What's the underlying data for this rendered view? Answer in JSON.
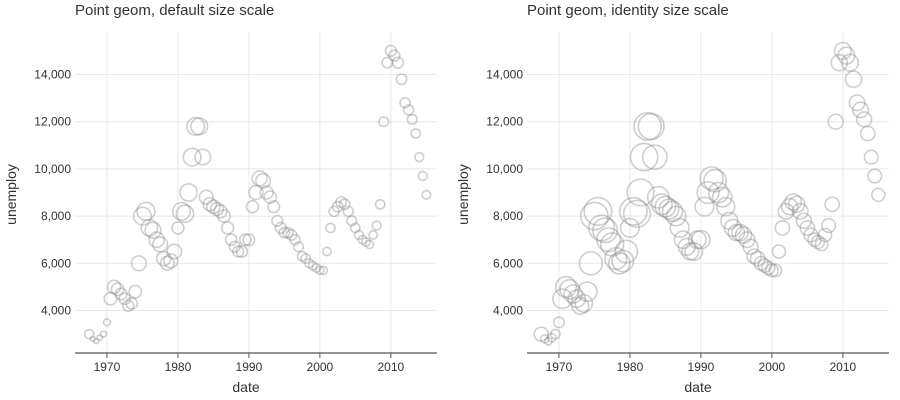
{
  "colors": {
    "point": "#8a8a8a",
    "grid": "#e8e8e8",
    "text": "#333333",
    "axis": "#555555"
  },
  "chart_data": [
    {
      "type": "scatter",
      "title": "Point geom, default size scale",
      "xlabel": "date",
      "ylabel": "unemploy",
      "xticks": [
        "1970",
        "1980",
        "1990",
        "2000",
        "2010"
      ],
      "yticks": [
        "4,000",
        "6,000",
        "8,000",
        "10,000",
        "12,000",
        "14,000"
      ],
      "xlim": [
        1965.5,
        2016.5
      ],
      "ylim": [
        2200,
        15800
      ],
      "grid": true,
      "size_scale": "default"
    },
    {
      "type": "scatter",
      "title": "Point geom, identity size scale",
      "xlabel": "date",
      "ylabel": "unemploy",
      "xticks": [
        "1970",
        "1980",
        "1990",
        "2000",
        "2010"
      ],
      "yticks": [
        "4,000",
        "6,000",
        "8,000",
        "10,000",
        "12,000",
        "14,000"
      ],
      "xlim": [
        1965.5,
        2016.5
      ],
      "ylim": [
        2200,
        15800
      ],
      "grid": true,
      "size_scale": "identity"
    }
  ],
  "series_data": {
    "name": "unemploy",
    "x": [
      1967.5,
      1968.0,
      1968.5,
      1969.0,
      1969.5,
      1970.0,
      1970.5,
      1971.0,
      1971.5,
      1972.0,
      1972.5,
      1973.0,
      1973.5,
      1974.0,
      1974.5,
      1975.0,
      1975.5,
      1976.0,
      1976.5,
      1977.0,
      1977.5,
      1978.0,
      1978.5,
      1979.0,
      1979.5,
      1980.0,
      1980.5,
      1981.0,
      1981.5,
      1982.0,
      1982.5,
      1983.0,
      1983.5,
      1984.0,
      1984.5,
      1985.0,
      1985.5,
      1986.0,
      1986.5,
      1987.0,
      1987.5,
      1988.0,
      1988.5,
      1989.0,
      1989.5,
      1990.0,
      1990.5,
      1991.0,
      1991.5,
      1992.0,
      1992.5,
      1993.0,
      1993.5,
      1994.0,
      1994.5,
      1995.0,
      1995.5,
      1996.0,
      1996.5,
      1997.0,
      1997.5,
      1998.0,
      1998.5,
      1999.0,
      1999.5,
      2000.0,
      2000.5,
      2001.0,
      2001.5,
      2002.0,
      2002.5,
      2003.0,
      2003.5,
      2004.0,
      2004.5,
      2005.0,
      2005.5,
      2006.0,
      2006.5,
      2007.0,
      2007.5,
      2008.0,
      2008.5,
      2009.0,
      2009.5,
      2010.0,
      2010.5,
      2011.0,
      2011.5,
      2012.0,
      2012.5,
      2013.0,
      2013.5,
      2014.0,
      2014.5,
      2015.0
    ],
    "y": [
      3000,
      2800,
      2700,
      2850,
      3000,
      3500,
      4500,
      5000,
      4900,
      4700,
      4500,
      4200,
      4300,
      4800,
      6000,
      8000,
      8200,
      7500,
      7400,
      7000,
      6800,
      6200,
      6000,
      6100,
      6500,
      7500,
      8200,
      8100,
      9000,
      10500,
      11800,
      11800,
      10500,
      8800,
      8500,
      8400,
      8300,
      8200,
      8000,
      7500,
      7000,
      6700,
      6500,
      6500,
      7000,
      7000,
      8400,
      9000,
      9600,
      9500,
      9000,
      8800,
      8400,
      7800,
      7500,
      7300,
      7300,
      7200,
      7000,
      6700,
      6300,
      6200,
      6000,
      5900,
      5800,
      5700,
      5700,
      6500,
      7500,
      8200,
      8400,
      8600,
      8500,
      8200,
      7800,
      7500,
      7200,
      7000,
      6900,
      6800,
      7200,
      7600,
      8500,
      12000,
      14500,
      15000,
      14800,
      14500,
      13800,
      12800,
      12500,
      12100,
      11500,
      10500,
      9700,
      8900
    ],
    "size": [
      4.5,
      2.6,
      2.4,
      2.7,
      3.0,
      3.4,
      6.2,
      6.6,
      6.2,
      5.8,
      5.6,
      5.4,
      5.6,
      6.2,
      7.4,
      8.8,
      8.9,
      8.2,
      7.9,
      7.6,
      7.4,
      7.0,
      6.8,
      6.9,
      7.2,
      6.0,
      8.8,
      8.6,
      8.6,
      8.8,
      8.8,
      8.3,
      7.8,
      6.9,
      6.6,
      6.6,
      6.4,
      6.4,
      6.2,
      6.0,
      5.6,
      5.4,
      5.4,
      5.6,
      5.6,
      5.8,
      6.0,
      7.0,
      7.4,
      7.2,
      6.4,
      6.2,
      5.8,
      5.4,
      5.4,
      5.2,
      5.2,
      5.2,
      5.0,
      4.8,
      4.6,
      4.6,
      4.4,
      4.2,
      4.2,
      4.0,
      4.0,
      4.2,
      4.6,
      5.0,
      5.2,
      5.2,
      5.2,
      5.0,
      4.8,
      4.6,
      4.4,
      4.2,
      4.2,
      4.0,
      4.2,
      4.4,
      4.6,
      4.8,
      5.2,
      5.4,
      5.4,
      5.4,
      5.2,
      5.0,
      5.0,
      4.8,
      4.6,
      4.4,
      4.4,
      4.2
    ]
  }
}
